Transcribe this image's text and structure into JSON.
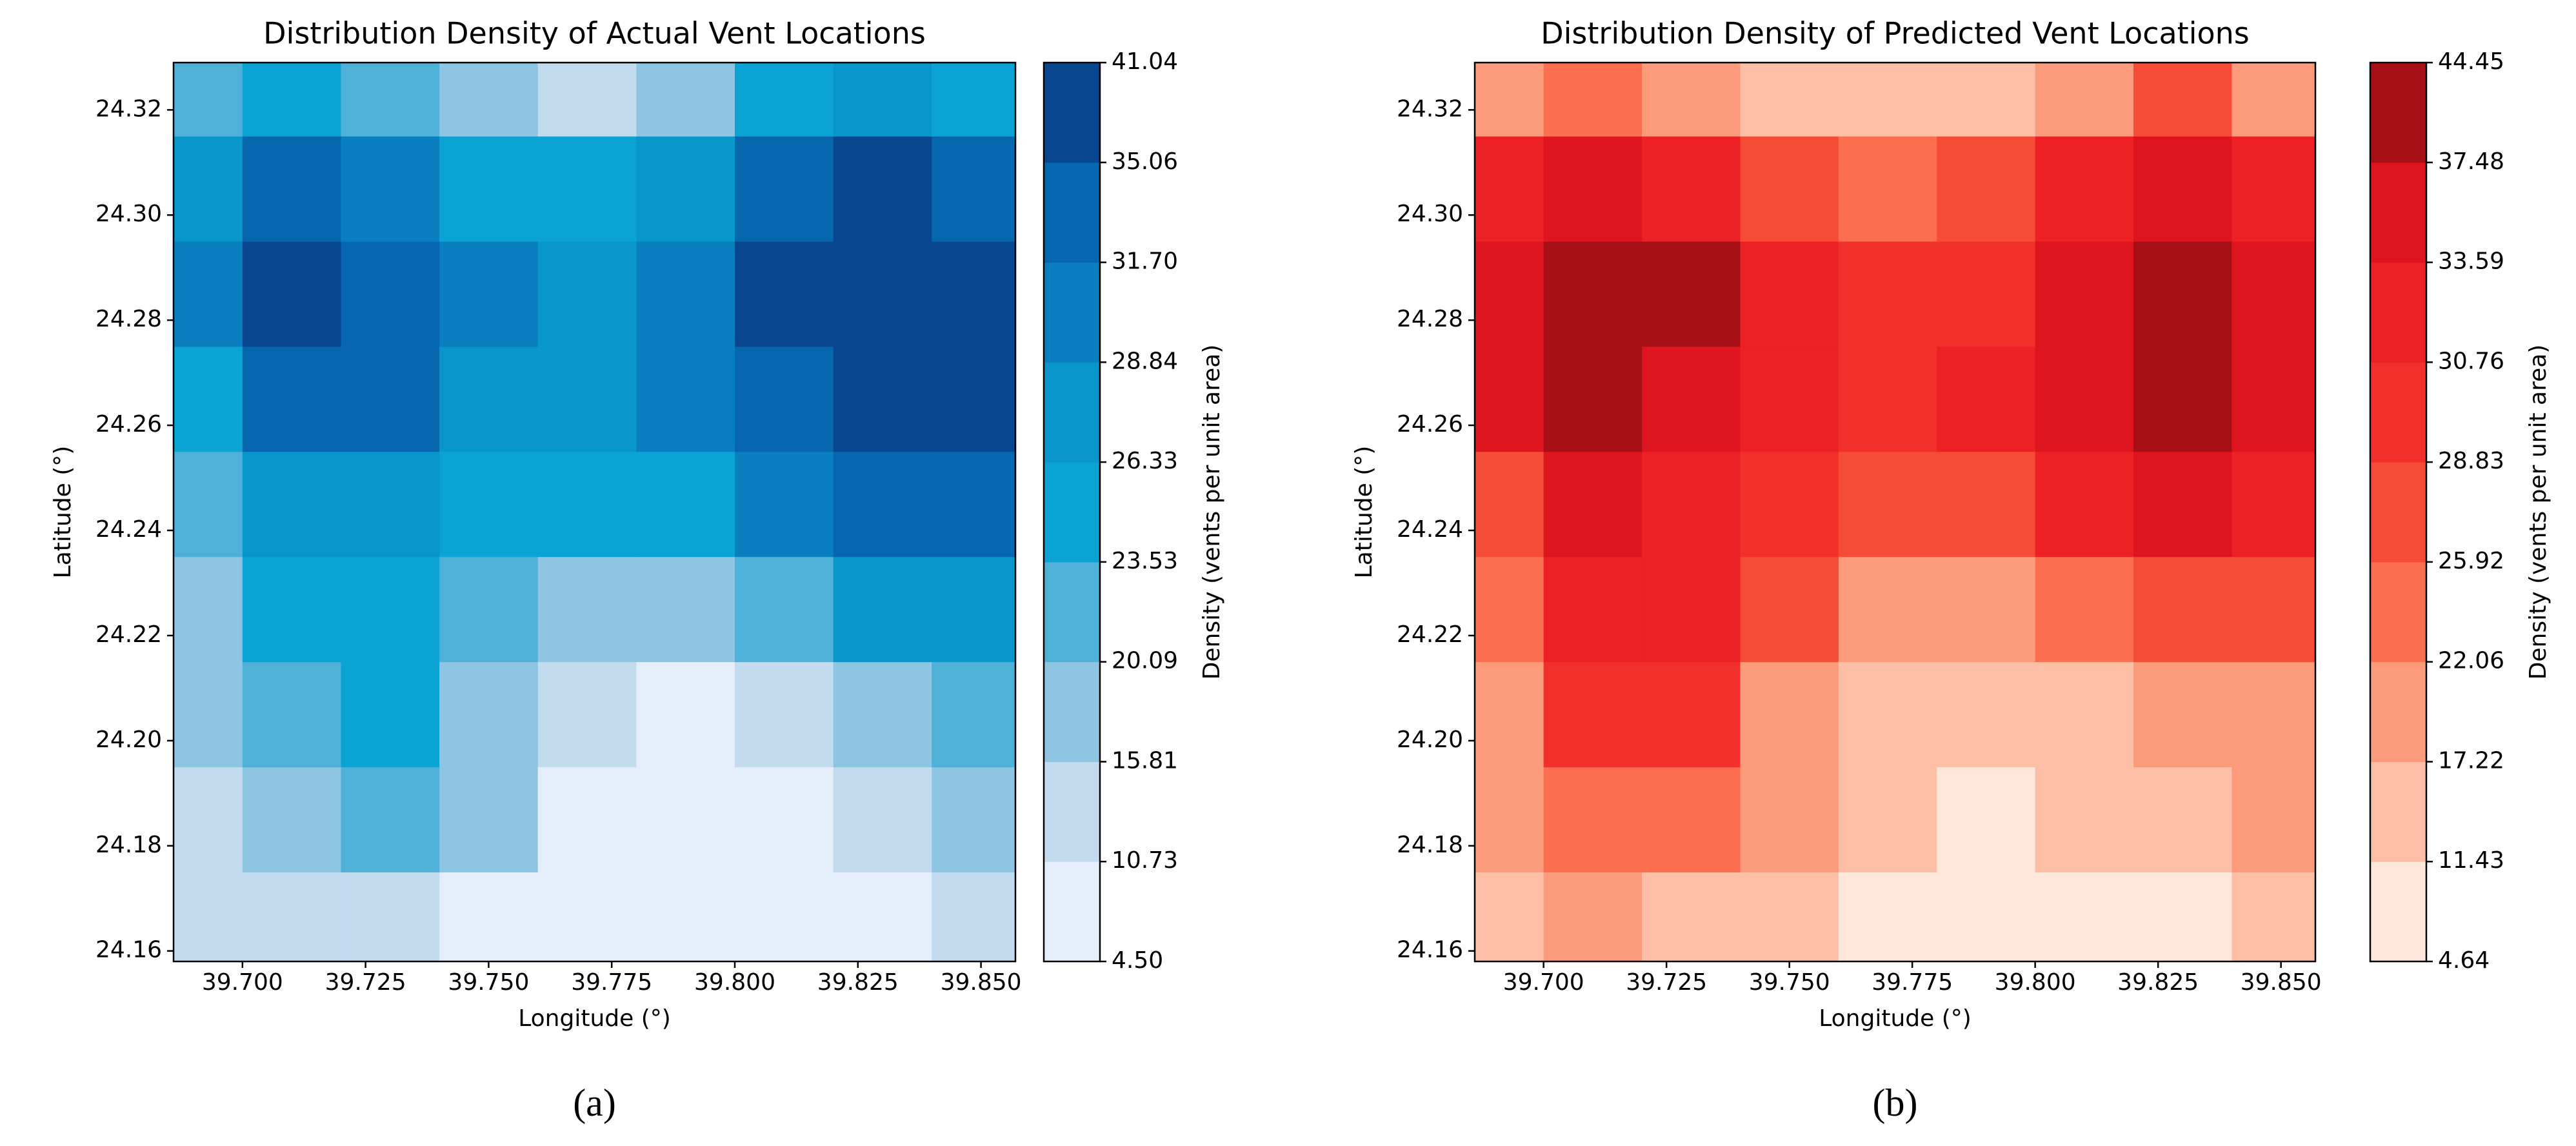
{
  "chart_data": [
    {
      "type": "contour",
      "title": "Distribution Density of Actual Vent Locations",
      "xlabel": "Longitude (°)",
      "ylabel": "Latitude (°)",
      "colorbar_label": "Density (vents per unit area)",
      "caption": "(a)",
      "xlim": [
        39.686,
        39.857
      ],
      "ylim": [
        24.158,
        24.329
      ],
      "xticks": [
        {
          "value": 39.7,
          "label": "39.700"
        },
        {
          "value": 39.725,
          "label": "39.725"
        },
        {
          "value": 39.75,
          "label": "39.750"
        },
        {
          "value": 39.775,
          "label": "39.775"
        },
        {
          "value": 39.8,
          "label": "39.800"
        },
        {
          "value": 39.825,
          "label": "39.825"
        },
        {
          "value": 39.85,
          "label": "39.850"
        }
      ],
      "yticks": [
        24.16,
        24.18,
        {
          "value": 24.2,
          "label": "24.20"
        },
        24.22,
        24.24,
        24.26,
        24.28,
        {
          "value": 24.3,
          "label": "24.30"
        },
        24.32
      ],
      "levels": [
        {
          "value": 4.5,
          "label": "4.50"
        },
        10.73,
        15.81,
        20.09,
        23.53,
        26.33,
        28.84,
        {
          "value": 31.7,
          "label": "31.70"
        },
        35.06,
        41.04
      ],
      "colors": [
        "#e4eefa",
        "#c2dbef",
        "#8ec5e2",
        "#4fb1d8",
        "#0ba3d4",
        "#0896cb",
        "#0a7fbf",
        "#0767ae",
        "#08468f"
      ],
      "x": [
        39.69,
        39.71,
        39.73,
        39.75,
        39.77,
        39.79,
        39.81,
        39.83,
        39.85
      ],
      "y": [
        24.165,
        24.185,
        24.205,
        24.225,
        24.245,
        24.265,
        24.285,
        24.305,
        24.325
      ],
      "z": [
        [
          12,
          15,
          14,
          10,
          7,
          5,
          6,
          10,
          13
        ],
        [
          15,
          20,
          21,
          16,
          10,
          7,
          10,
          15,
          18
        ],
        [
          17,
          23,
          24,
          19,
          13,
          10,
          15,
          20,
          21
        ],
        [
          19,
          25,
          25,
          22,
          17,
          17,
          22,
          27,
          27
        ],
        [
          22,
          27,
          27,
          25,
          24,
          25,
          29,
          33,
          32
        ],
        [
          26,
          32,
          32,
          28,
          27,
          30,
          34,
          38,
          36
        ],
        [
          29,
          38,
          35,
          29,
          27,
          31,
          37,
          41,
          36
        ],
        [
          27,
          33,
          31,
          26,
          24,
          28,
          34,
          38,
          33
        ],
        [
          22,
          25,
          22,
          18,
          14,
          18,
          25,
          27,
          24
        ]
      ]
    },
    {
      "type": "contour",
      "title": "Distribution Density of Predicted Vent Locations",
      "xlabel": "Longitude (°)",
      "ylabel": "Latitude (°)",
      "colorbar_label": "Density (vents per unit area)",
      "caption": "(b)",
      "xlim": [
        39.686,
        39.857
      ],
      "ylim": [
        24.158,
        24.329
      ],
      "xticks": [
        {
          "value": 39.7,
          "label": "39.700"
        },
        {
          "value": 39.725,
          "label": "39.725"
        },
        {
          "value": 39.75,
          "label": "39.750"
        },
        {
          "value": 39.775,
          "label": "39.775"
        },
        {
          "value": 39.8,
          "label": "39.800"
        },
        {
          "value": 39.825,
          "label": "39.825"
        },
        {
          "value": 39.85,
          "label": "39.850"
        }
      ],
      "yticks": [
        24.16,
        24.18,
        {
          "value": 24.2,
          "label": "24.20"
        },
        24.22,
        24.24,
        24.26,
        24.28,
        {
          "value": 24.3,
          "label": "24.30"
        },
        24.32
      ],
      "levels": [
        4.64,
        11.43,
        17.22,
        22.06,
        25.92,
        28.83,
        30.76,
        33.59,
        37.48,
        44.45
      ],
      "colors": [
        "#fee6da",
        "#fcbfa5",
        "#fc9a7c",
        "#fb6e4f",
        "#f64b36",
        "#f1302b",
        "#ec2025",
        "#de151e",
        "#a50f15"
      ],
      "x": [
        39.69,
        39.71,
        39.73,
        39.75,
        39.77,
        39.79,
        39.81,
        39.83,
        39.85
      ],
      "y": [
        24.165,
        24.185,
        24.205,
        24.225,
        24.245,
        24.265,
        24.285,
        24.305,
        24.325
      ],
      "z": [
        [
          14,
          18,
          17,
          12,
          8,
          5,
          7,
          10,
          12
        ],
        [
          18,
          25,
          25,
          18,
          12,
          9,
          12,
          16,
          18
        ],
        [
          21,
          29,
          29,
          22,
          15,
          13,
          17,
          21,
          22
        ],
        [
          24,
          31,
          31,
          27,
          22,
          22,
          25,
          28,
          27
        ],
        [
          28,
          34,
          33,
          30,
          27,
          28,
          31,
          34,
          32
        ],
        [
          34,
          41,
          37,
          32,
          30,
          31,
          35,
          38,
          35
        ],
        [
          37,
          44,
          39,
          33,
          29,
          30,
          36,
          40,
          36
        ],
        [
          32,
          36,
          33,
          28,
          25,
          27,
          33,
          36,
          31
        ],
        [
          22,
          25,
          22,
          17,
          12,
          15,
          22,
          26,
          22
        ]
      ]
    }
  ]
}
